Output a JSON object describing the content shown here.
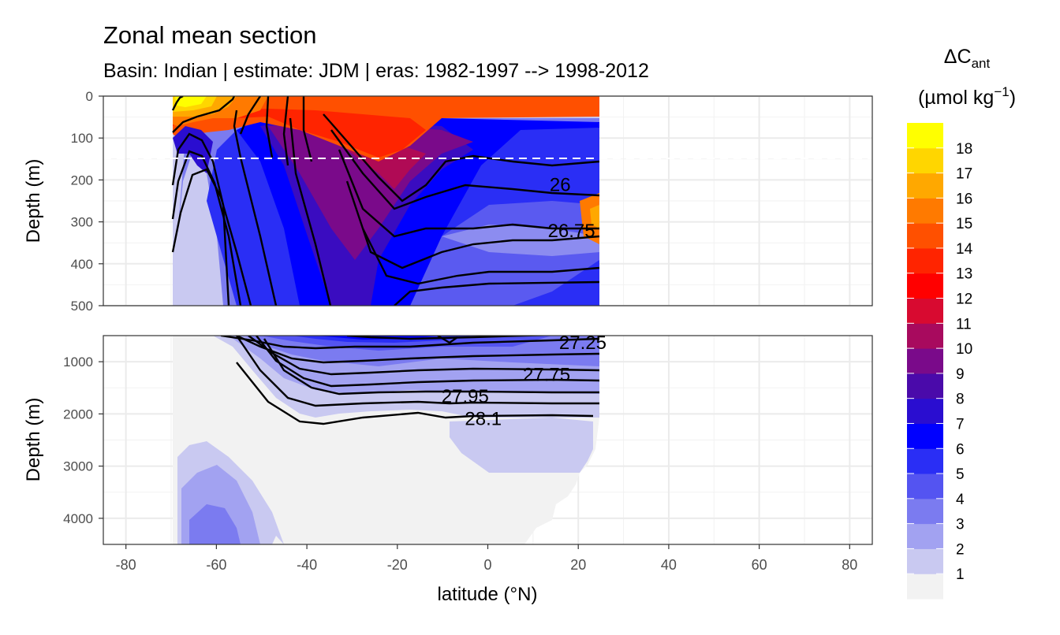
{
  "chart_data": {
    "type": "heatmap",
    "title": "Zonal mean section",
    "subtitle": "Basin: Indian | estimate: JDM  | eras: 1982-1997 --> 1998-2012",
    "xlabel": "latitude (°N)",
    "ylabel": "Depth (m)",
    "xlim": [
      -85,
      85
    ],
    "x_ticks": [
      "-80",
      "-60",
      "-40",
      "-20",
      "0",
      "20",
      "40",
      "60",
      "80"
    ],
    "grid": true,
    "data_lat_range": [
      -70,
      24.5
    ],
    "panels": [
      {
        "name": "upper",
        "ylim": [
          0,
          500
        ],
        "y_ticks": [
          "0",
          "100",
          "200",
          "300",
          "400",
          "500"
        ],
        "reference_depth": 150
      },
      {
        "name": "lower",
        "ylim": [
          500,
          4500
        ],
        "y_ticks": [
          "1000",
          "2000",
          "3000",
          "4000"
        ]
      }
    ],
    "contour_labels": [
      {
        "text": "26",
        "lat": 16,
        "depth": 210
      },
      {
        "text": "26.75",
        "lat": 18.5,
        "depth": 320
      },
      {
        "text": "27.25",
        "lat": 21,
        "depth": 620
      },
      {
        "text": "27.75",
        "lat": 13,
        "depth": 1230
      },
      {
        "text": "27.95",
        "lat": -5,
        "depth": 1650
      },
      {
        "text": "28.1",
        "lat": -1,
        "depth": 2080
      }
    ],
    "legend": {
      "title": "ΔC",
      "title_subscript": "ant",
      "unit_prefix": "(µmol kg",
      "unit_superscript": "−1",
      "unit_suffix": ")",
      "position": "right",
      "breaks": [
        "1",
        "2",
        "3",
        "4",
        "5",
        "6",
        "7",
        "8",
        "9",
        "10",
        "11",
        "12",
        "13",
        "14",
        "15",
        "16",
        "17",
        "18"
      ],
      "colors": [
        "#f2f2f2",
        "#c9c9f1",
        "#a2a2f1",
        "#7b7bf0",
        "#5454f1",
        "#2a2ef5",
        "#0000ff",
        "#2a0dd0",
        "#4a0aaa",
        "#7a0a8a",
        "#a80a5e",
        "#d80a30",
        "#ff0000",
        "#ff2400",
        "#ff5000",
        "#ff7a00",
        "#ffa800",
        "#ffd600",
        "#ffff00"
      ]
    }
  }
}
